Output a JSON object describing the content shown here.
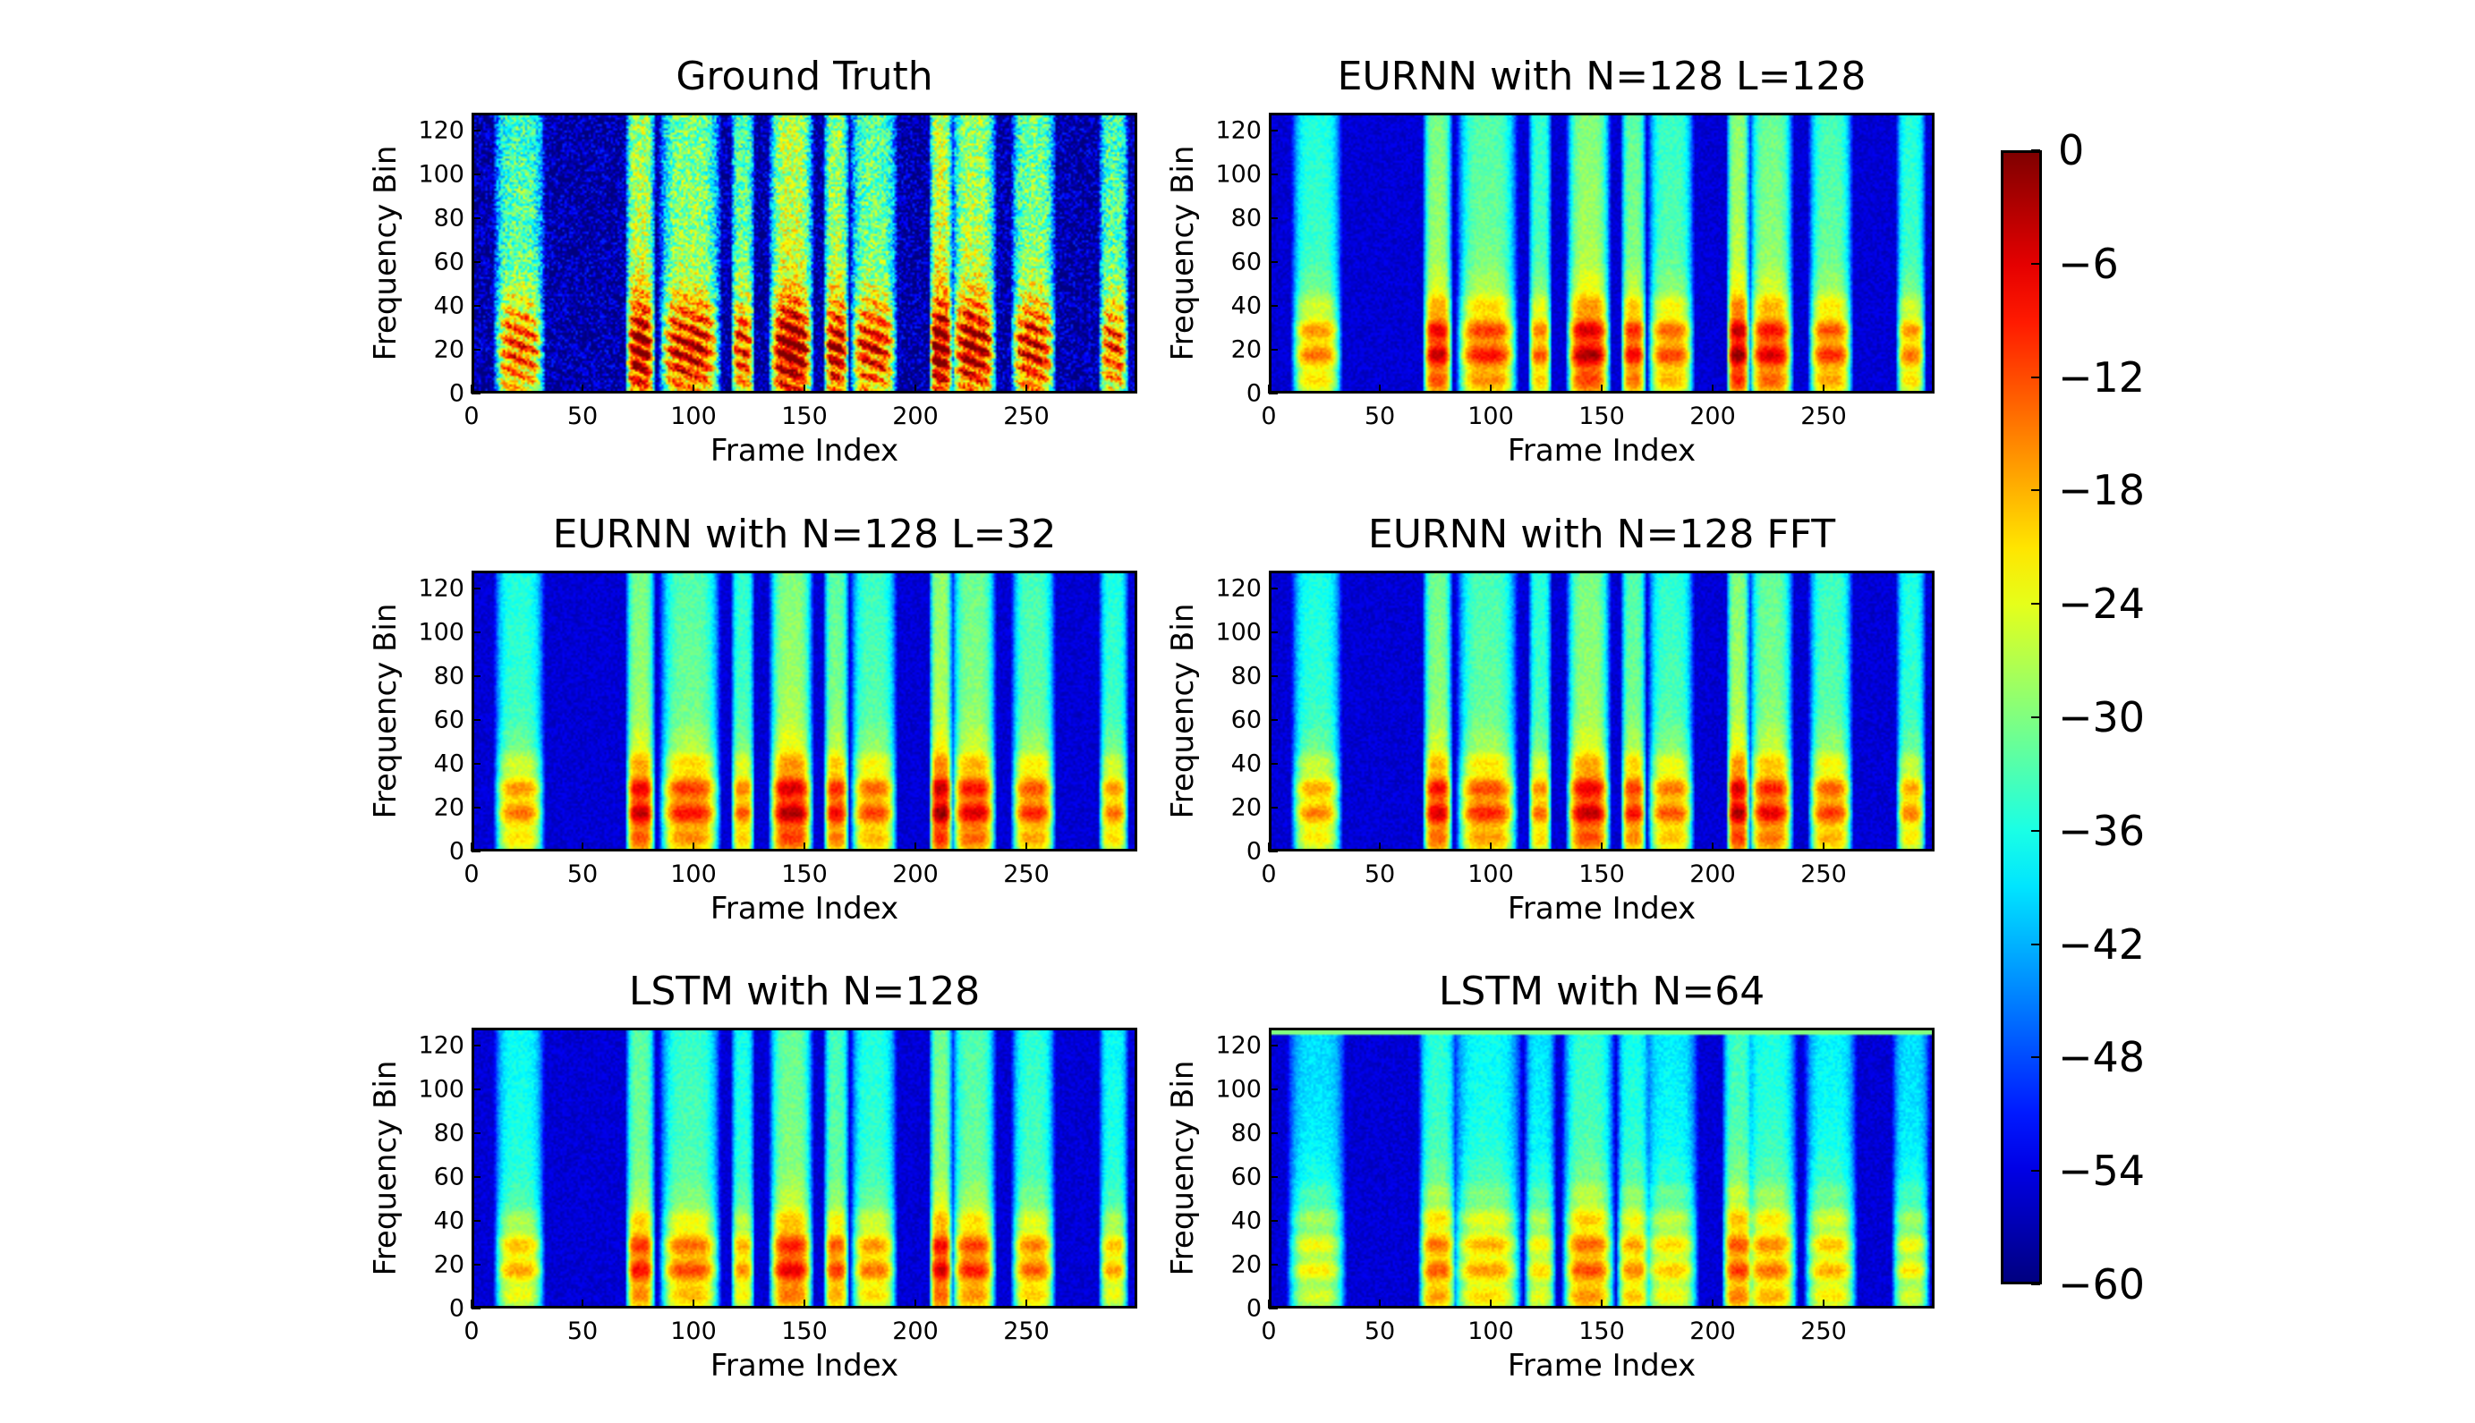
{
  "chart_data": [
    {
      "type": "heatmap",
      "title": "Ground Truth",
      "xlabel": "Frame Index",
      "ylabel": "Frequency Bin",
      "xlim": [
        0,
        300
      ],
      "ylim": [
        0,
        128
      ],
      "xticks": [
        "0",
        "50",
        "100",
        "150",
        "200",
        "250"
      ],
      "yticks": [
        "0",
        "20",
        "40",
        "60",
        "80",
        "100",
        "120"
      ],
      "peak_db": -8,
      "sharpness": "noisy"
    },
    {
      "type": "heatmap",
      "title": "EURNN with N=128 L=128",
      "xlabel": "Frame Index",
      "ylabel": "Frequency Bin",
      "xlim": [
        0,
        300
      ],
      "ylim": [
        0,
        128
      ],
      "xticks": [
        "0",
        "50",
        "100",
        "150",
        "200",
        "250"
      ],
      "yticks": [
        "0",
        "20",
        "40",
        "60",
        "80",
        "100",
        "120"
      ],
      "peak_db": -12,
      "sharpness": "smooth"
    },
    {
      "type": "heatmap",
      "title": "EURNN with N=128 L=32",
      "xlabel": "Frame Index",
      "ylabel": "Frequency Bin",
      "xlim": [
        0,
        300
      ],
      "ylim": [
        0,
        128
      ],
      "xticks": [
        "0",
        "50",
        "100",
        "150",
        "200",
        "250"
      ],
      "yticks": [
        "0",
        "20",
        "40",
        "60",
        "80",
        "100",
        "120"
      ],
      "peak_db": -12,
      "sharpness": "smooth"
    },
    {
      "type": "heatmap",
      "title": "EURNN with N=128 FFT",
      "xlabel": "Frame Index",
      "ylabel": "Frequency Bin",
      "xlim": [
        0,
        300
      ],
      "ylim": [
        0,
        128
      ],
      "xticks": [
        "0",
        "50",
        "100",
        "150",
        "200",
        "250"
      ],
      "yticks": [
        "0",
        "20",
        "40",
        "60",
        "80",
        "100",
        "120"
      ],
      "peak_db": -13,
      "sharpness": "smooth"
    },
    {
      "type": "heatmap",
      "title": "LSTM with N=128",
      "xlabel": "Frame Index",
      "ylabel": "Frequency Bin",
      "xlim": [
        0,
        300
      ],
      "ylim": [
        0,
        128
      ],
      "xticks": [
        "0",
        "50",
        "100",
        "150",
        "200",
        "250"
      ],
      "yticks": [
        "0",
        "20",
        "40",
        "60",
        "80",
        "100",
        "120"
      ],
      "peak_db": -15,
      "sharpness": "smooth"
    },
    {
      "type": "heatmap",
      "title": "LSTM with N=64",
      "xlabel": "Frame Index",
      "ylabel": "Frequency Bin",
      "xlim": [
        0,
        300
      ],
      "ylim": [
        0,
        128
      ],
      "xticks": [
        "0",
        "50",
        "100",
        "150",
        "200",
        "250"
      ],
      "yticks": [
        "0",
        "20",
        "40",
        "60",
        "80",
        "100",
        "120"
      ],
      "peak_db": -20,
      "sharpness": "blurred"
    }
  ],
  "speech_segments_frames": [
    [
      10,
      30
    ],
    [
      70,
      80
    ],
    [
      85,
      110
    ],
    [
      118,
      125
    ],
    [
      135,
      152
    ],
    [
      160,
      168
    ],
    [
      172,
      190
    ],
    [
      208,
      215
    ],
    [
      218,
      235
    ],
    [
      245,
      262
    ],
    [
      285,
      295
    ]
  ],
  "colorbar": {
    "colormap": "jet",
    "range": [
      -60,
      0
    ],
    "ticks": [
      "0",
      "−6",
      "−12",
      "−18",
      "−24",
      "−30",
      "−36",
      "−42",
      "−48",
      "−54",
      "−60"
    ]
  }
}
